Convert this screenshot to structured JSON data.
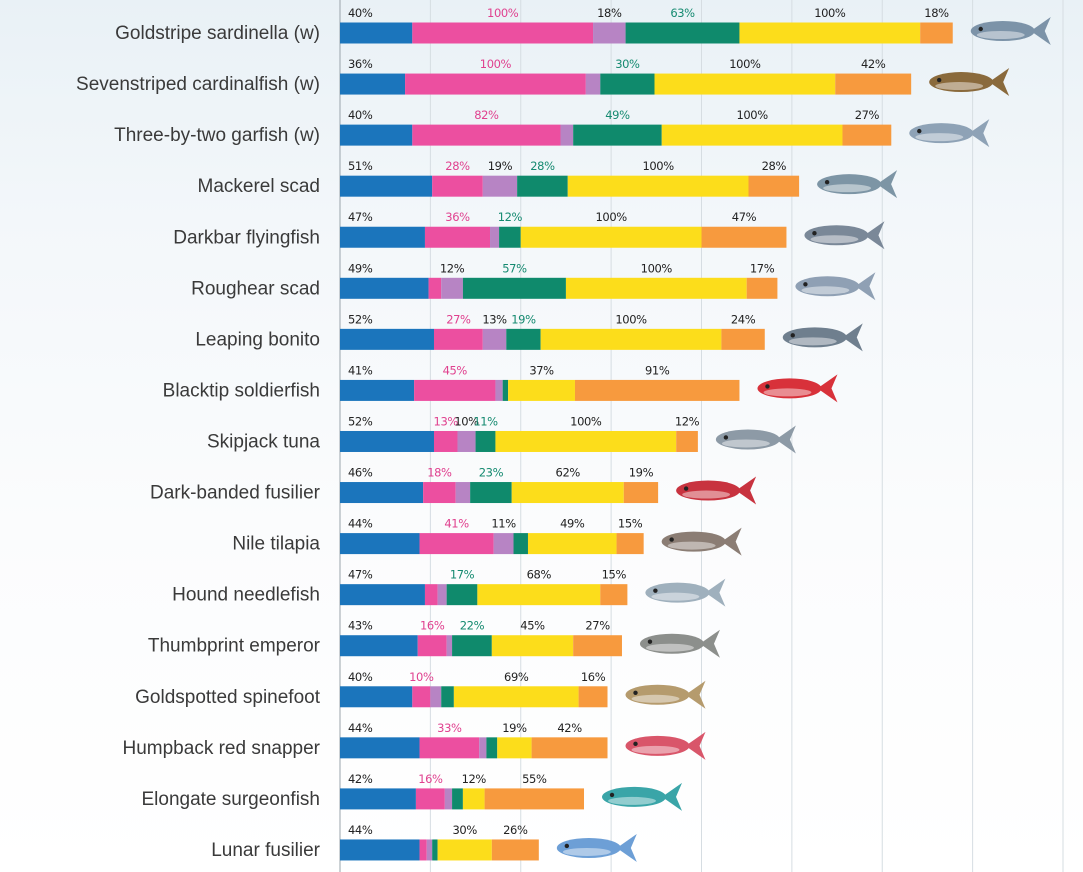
{
  "chart_data": {
    "type": "bar",
    "orientation": "horizontal",
    "stacked": true,
    "categories": [
      "Goldstripe sardinella (w)",
      "Sevenstriped cardinalfish (w)",
      "Three-by-two garfish (w)",
      "Mackerel scad",
      "Darkbar flyingfish",
      "Roughear scad",
      "Leaping bonito",
      "Blacktip soldierfish",
      "Skipjack tuna",
      "Dark-banded fusilier",
      "Nile tilapia",
      "Hound needlefish",
      "Thumbprint emperor",
      "Goldspotted spinefoot",
      "Humpback red snapper",
      "Elongate surgeonfish",
      "Lunar fusilier"
    ],
    "series": [
      {
        "color": "#1b75bc",
        "label_color": "#222222",
        "values": [
          40,
          36,
          40,
          51,
          47,
          49,
          52,
          41,
          52,
          46,
          44,
          47,
          43,
          40,
          44,
          42,
          44
        ],
        "value_labels": [
          "40%",
          "36%",
          "40%",
          "51%",
          "47%",
          "49%",
          "52%",
          "41%",
          "52%",
          "46%",
          "44%",
          "47%",
          "43%",
          "40%",
          "44%",
          "42%",
          "44%"
        ]
      },
      {
        "color": "#ec4fa0",
        "label_color": "#e0418f",
        "values": [
          100,
          100,
          82,
          28,
          36,
          7,
          27,
          45,
          13,
          18,
          41,
          7,
          16,
          10,
          33,
          16,
          4
        ],
        "value_labels": [
          "100%",
          "100%",
          "82%",
          "28%",
          "36%",
          null,
          "27%",
          "45%",
          "13%",
          "18%",
          "41%",
          null,
          "16%",
          "10%",
          "33%",
          "16%",
          null
        ]
      },
      {
        "color": "#b784c4",
        "label_color": "#222222",
        "values": [
          18,
          8,
          7,
          19,
          5,
          12,
          13,
          4,
          10,
          8,
          11,
          5,
          3,
          6,
          4,
          4,
          3
        ],
        "value_labels": [
          "18%",
          null,
          null,
          "19%",
          null,
          "12%",
          "13%",
          null,
          "10%",
          null,
          "11%",
          null,
          null,
          null,
          null,
          null,
          null
        ]
      },
      {
        "color": "#0f8a6c",
        "label_color": "#158a70",
        "values": [
          63,
          30,
          49,
          28,
          12,
          57,
          19,
          3,
          11,
          23,
          8,
          17,
          22,
          7,
          6,
          6,
          3
        ],
        "value_labels": [
          "63%",
          "30%",
          "49%",
          "28%",
          "12%",
          "57%",
          "19%",
          null,
          "11%",
          "23%",
          null,
          "17%",
          "22%",
          null,
          null,
          null,
          null
        ]
      },
      {
        "color": "#fcdd1b",
        "label_color": "#222222",
        "values": [
          100,
          100,
          100,
          100,
          100,
          100,
          100,
          37,
          100,
          62,
          49,
          68,
          45,
          69,
          19,
          12,
          30
        ],
        "value_labels": [
          "100%",
          "100%",
          "100%",
          "100%",
          "100%",
          "100%",
          "100%",
          "37%",
          "100%",
          "62%",
          "49%",
          "68%",
          "45%",
          "69%",
          "19%",
          "12%",
          "30%"
        ]
      },
      {
        "color": "#f79a3e",
        "label_color": "#222222",
        "values": [
          18,
          42,
          27,
          28,
          47,
          17,
          24,
          91,
          12,
          19,
          15,
          15,
          27,
          16,
          42,
          55,
          26
        ],
        "value_labels": [
          "18%",
          "42%",
          "27%",
          "28%",
          "47%",
          "17%",
          "24%",
          "91%",
          "12%",
          "19%",
          "15%",
          "15%",
          "27%",
          "16%",
          "42%",
          "55%",
          "26%"
        ]
      }
    ],
    "xlim": [
      0,
      400
    ],
    "xticks": [
      0,
      50,
      100,
      150,
      200,
      250,
      300,
      350,
      400
    ],
    "grid": true
  }
}
